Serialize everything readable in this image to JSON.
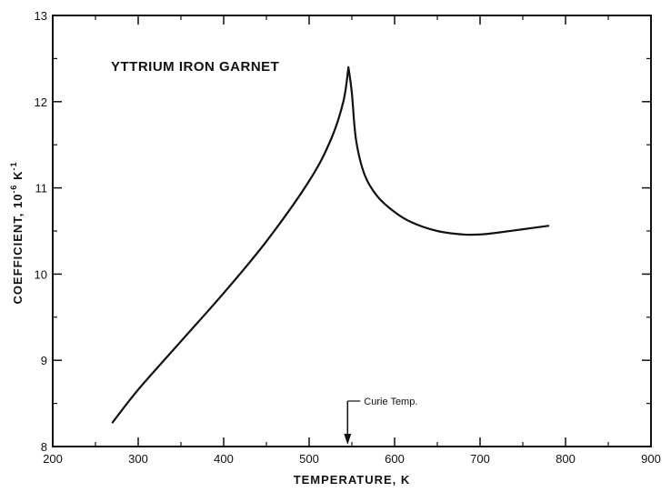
{
  "chart_data": {
    "type": "line",
    "title": "YTTRIUM IRON GARNET",
    "xlabel": "TEMPERATURE, K",
    "ylabel_parts": [
      "COEFFICIENT, 10",
      "-6",
      " K",
      "-1"
    ],
    "xlim": [
      200,
      900
    ],
    "ylim": [
      8,
      13
    ],
    "xticks": [
      200,
      300,
      400,
      500,
      600,
      700,
      800,
      900
    ],
    "yticks": [
      8,
      9,
      10,
      11,
      12,
      13
    ],
    "grid": false,
    "annotation": {
      "text": "Curie Temp.",
      "x": 545
    },
    "series": [
      {
        "x": [
          270,
          300,
          350,
          400,
          450,
          500,
          525,
          540,
          546,
          550,
          555,
          565,
          580,
          600,
          620,
          650,
          680,
          700,
          720,
          750,
          780
        ],
        "y": [
          8.28,
          8.66,
          9.22,
          9.78,
          10.38,
          11.08,
          11.55,
          12.0,
          12.4,
          12.1,
          11.55,
          11.15,
          10.9,
          10.72,
          10.6,
          10.5,
          10.46,
          10.46,
          10.48,
          10.52,
          10.56
        ]
      }
    ]
  }
}
